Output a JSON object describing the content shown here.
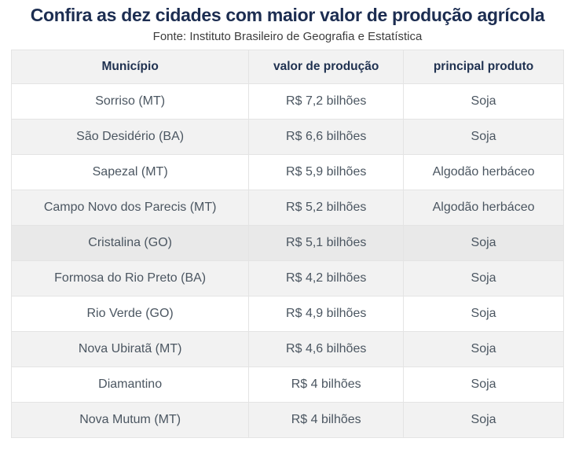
{
  "page": {
    "title": "Confira as dez cidades com maior valor de produção agrícola",
    "source": "Fonte: Instituto Brasileiro de Geografia e Estatística"
  },
  "chart_data": {
    "type": "table",
    "title": "Confira as dez cidades com maior valor de produção agrícola",
    "subtitle": "Fonte: Instituto Brasileiro de Geografia e Estatística",
    "headers": [
      "Município",
      "valor de produção",
      "principal produto"
    ],
    "rows": [
      [
        "Sorriso (MT)",
        "R$ 7,2 bilhões",
        "Soja"
      ],
      [
        "São Desidério (BA)",
        "R$ 6,6 bilhões",
        "Soja"
      ],
      [
        "Sapezal (MT)",
        "R$ 5,9 bilhões",
        "Algodão herbáceo"
      ],
      [
        "Campo Novo dos Parecis (MT)",
        "R$ 5,2 bilhões",
        "Algodão herbáceo"
      ],
      [
        "Cristalina (GO)",
        "R$ 5,1 bilhões",
        "Soja"
      ],
      [
        "Formosa do Rio Preto (BA)",
        "R$ 4,2 bilhões",
        "Soja"
      ],
      [
        "Rio Verde (GO)",
        "R$ 4,9 bilhões",
        "Soja"
      ],
      [
        "Nova Ubiratã (MT)",
        "R$ 4,6 bilhões",
        "Soja"
      ],
      [
        "Diamantino",
        "R$ 4 bilhões",
        "Soja"
      ],
      [
        "Nova Mutum (MT)",
        "R$ 4 bilhões",
        "Soja"
      ]
    ],
    "highlighted_row_index": 4,
    "values_in_billions_brl": [
      7.2,
      6.6,
      5.9,
      5.2,
      5.1,
      4.2,
      4.9,
      4.6,
      4.0,
      4.0
    ]
  },
  "colors": {
    "title_text": "#1c2d51",
    "header_text": "#1f3150",
    "cell_text": "#4b5661",
    "stripe_row": "#f2f2f2",
    "highlight_row": "#e9e9e9",
    "border": "#e4e4e4"
  }
}
